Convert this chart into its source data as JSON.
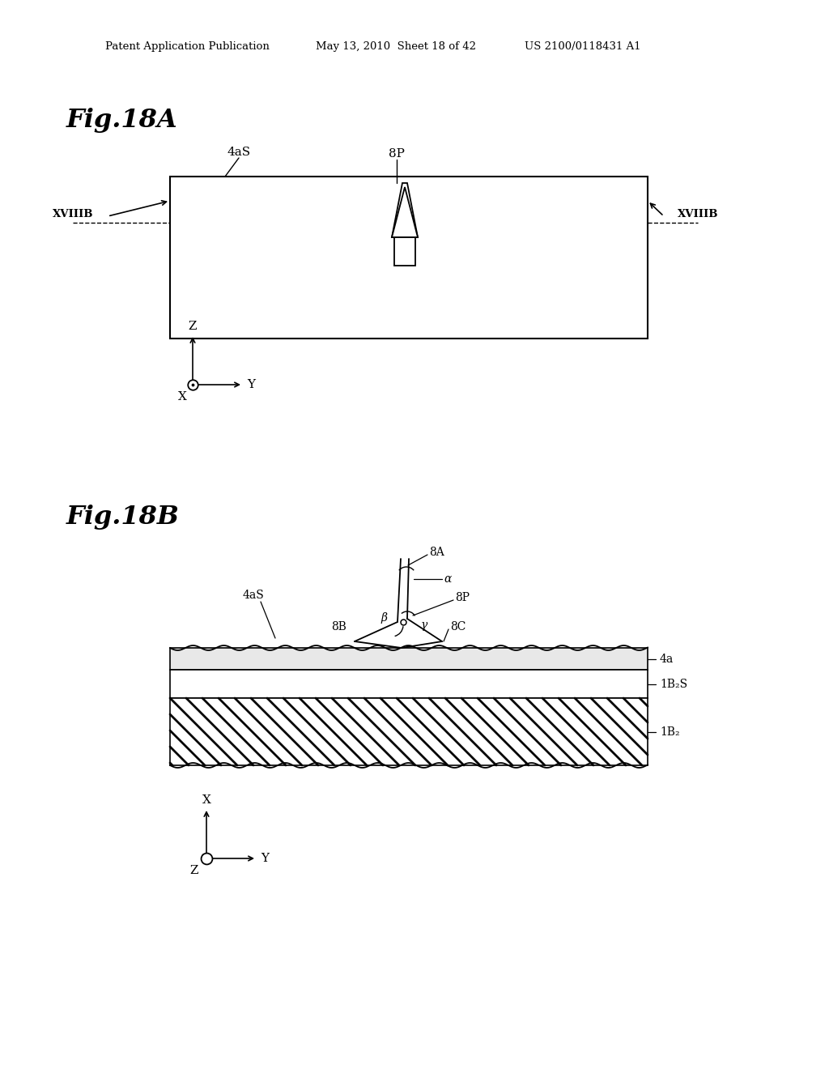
{
  "background_color": "#ffffff",
  "header_left": "Patent Application Publication",
  "header_mid": "May 13, 2010  Sheet 18 of 42",
  "header_right": "US 2100/0118431 A1",
  "fig18A_title": "Fig.18A",
  "fig18B_title": "Fig.18B",
  "label_4aS_A": "4aS",
  "label_8P_A": "8P",
  "label_XVIIIB": "XVIIIB",
  "label_Z": "Z",
  "label_Y": "Y",
  "label_X": "X",
  "label_8A": "8A",
  "label_8B": "8B",
  "label_8C": "8C",
  "label_8P_B": "8P",
  "label_4aS_B": "4aS",
  "label_4a": "4a",
  "label_1B2S": "1B₂S",
  "label_1B2": "1B₂",
  "label_alpha": "α",
  "label_beta": "β",
  "label_gamma": "γ"
}
